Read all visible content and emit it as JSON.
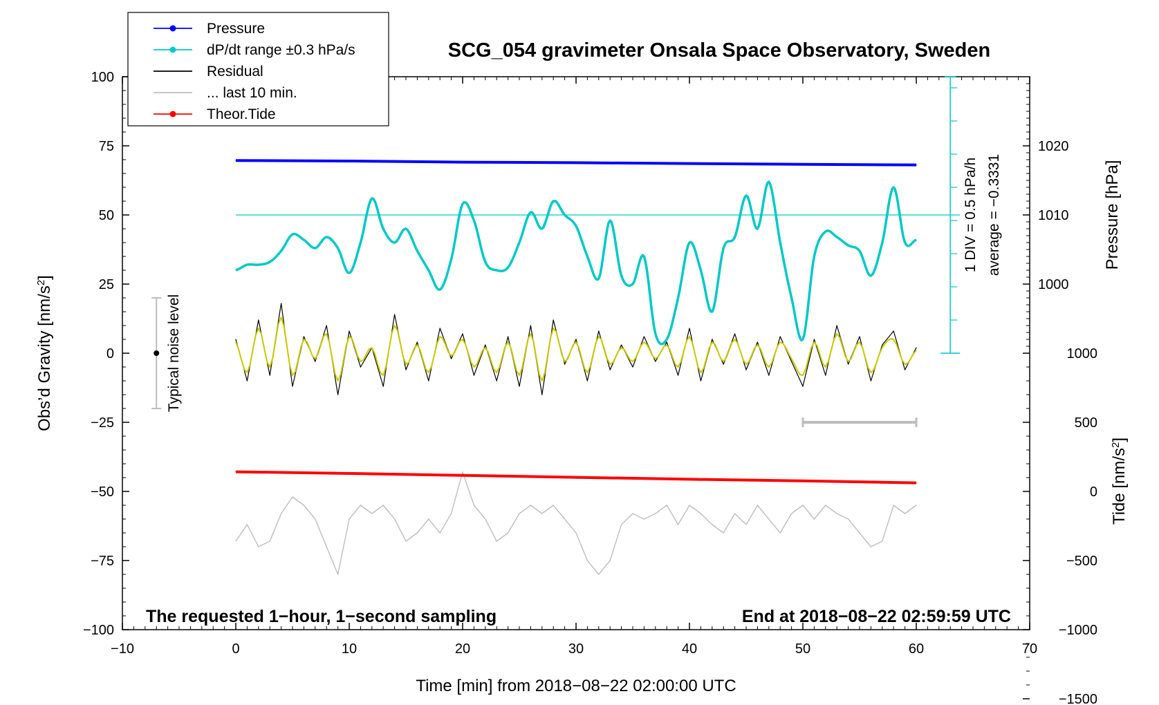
{
  "chart_data": {
    "type": "line",
    "title": "SCG_054 gravimeter Onsala Space Observatory, Sweden",
    "xlabel": "Time [min] from 2018−08−22 02:00:00 UTC",
    "ylabel": "Obs’d Gravity [nm/s²]",
    "ylabel_main": "Obs’d Gravity [nm/s",
    "ylabel_sup": "2",
    "ylabel_end": "]",
    "xlim": [
      -10,
      70
    ],
    "ylim": [
      -100,
      100
    ],
    "x_ticks": [
      -10,
      0,
      10,
      20,
      30,
      40,
      50,
      60,
      70
    ],
    "x_tick_labels": [
      "−10",
      "0",
      "10",
      "20",
      "30",
      "40",
      "50",
      "60",
      "70"
    ],
    "y_ticks": [
      -100,
      -75,
      -50,
      -25,
      0,
      25,
      50,
      75,
      100
    ],
    "y_tick_labels": [
      "−100",
      "−75",
      "−50",
      "−25",
      "0",
      "25",
      "50",
      "75",
      "100"
    ],
    "pressure_axis": {
      "label": "Pressure [hPa]",
      "ticks": [
        1000,
        1010,
        1020
      ],
      "tick_labels": [
        "1000",
        "1010",
        "1020"
      ],
      "gravity_at_1000": 25,
      "gravity_per_hpa": 2.5
    },
    "tide_axis": {
      "label_main": "Tide [nm/s",
      "label_sup": "2",
      "label_end": "]",
      "ticks": [
        -1500,
        -1000,
        -500,
        0,
        500,
        1000
      ],
      "tick_labels": [
        "−1500",
        "−1000",
        "−500",
        "0",
        "500",
        "1000"
      ],
      "gravity_at_0": -50,
      "gravity_per_unit": 0.05
    },
    "legend": [
      {
        "label": "Pressure",
        "color": "#0000ff",
        "marker": true
      },
      {
        "label": "dP/dt range ±0.3 hPa/s",
        "color": "#00c8c8",
        "marker": true
      },
      {
        "label": "Residual",
        "color": "#000000",
        "marker": false
      },
      {
        "label": "... last 10 min.",
        "color": "#bdbdbd",
        "marker": false
      },
      {
        "label": "Theor.Tide",
        "color": "#ff0000",
        "marker": true
      }
    ],
    "series": [
      {
        "name": "Pressure",
        "color": "#0000ff",
        "x": [
          0,
          10,
          20,
          30,
          40,
          50,
          60
        ],
        "y": [
          69.7,
          69.5,
          69.1,
          68.9,
          68.6,
          68.3,
          68.1
        ]
      },
      {
        "name": "dP/dt",
        "color": "#00c8c8",
        "x": [
          0,
          1,
          2,
          3,
          4,
          5,
          6,
          7,
          8,
          9,
          10,
          11,
          12,
          13,
          14,
          15,
          16,
          17,
          18,
          19,
          20,
          21,
          22,
          23,
          24,
          25,
          26,
          27,
          28,
          29,
          30,
          31,
          32,
          33,
          34,
          35,
          36,
          37,
          38,
          39,
          40,
          41,
          42,
          43,
          44,
          45,
          46,
          47,
          48,
          49,
          50,
          51,
          52,
          53,
          54,
          55,
          56,
          57,
          58,
          59,
          60
        ],
        "y": [
          30,
          32,
          32,
          33,
          37,
          43,
          41,
          38,
          42,
          38,
          29,
          40,
          56,
          45,
          40,
          45,
          37,
          30,
          23,
          34,
          54,
          48,
          33,
          30,
          31,
          40,
          51,
          45,
          55,
          50,
          46,
          35,
          27,
          48,
          28,
          25,
          35,
          7,
          5,
          20,
          40,
          30,
          15,
          38,
          42,
          57,
          45,
          62,
          40,
          20,
          5,
          35,
          44,
          42,
          39,
          37,
          28,
          40,
          60,
          40,
          41
        ]
      },
      {
        "name": "Residual",
        "color": "#000000",
        "x": [
          0,
          1,
          2,
          3,
          4,
          5,
          6,
          7,
          8,
          9,
          10,
          11,
          12,
          13,
          14,
          15,
          16,
          17,
          18,
          19,
          20,
          21,
          22,
          23,
          24,
          25,
          26,
          27,
          28,
          29,
          30,
          31,
          32,
          33,
          34,
          35,
          36,
          37,
          38,
          39,
          40,
          41,
          42,
          43,
          44,
          45,
          46,
          47,
          48,
          49,
          50,
          51,
          52,
          53,
          54,
          55,
          56,
          57,
          58,
          59,
          60
        ],
        "y": [
          5,
          -10,
          12,
          -8,
          18,
          -12,
          6,
          -3,
          10,
          -15,
          8,
          -5,
          2,
          -12,
          14,
          -6,
          4,
          -10,
          9,
          -2,
          7,
          -8,
          3,
          -10,
          6,
          -12,
          10,
          -15,
          12,
          -4,
          5,
          -10,
          8,
          -6,
          3,
          -5,
          6,
          -3,
          4,
          -8,
          9,
          -10,
          5,
          -4,
          7,
          -6,
          4,
          -8,
          6,
          -3,
          -12,
          5,
          -8,
          10,
          -4,
          6,
          -10,
          3,
          8,
          -6,
          2
        ]
      },
      {
        "name": "Residual filtered",
        "color": "#c8c800",
        "x": [
          0,
          1,
          2,
          3,
          4,
          5,
          6,
          7,
          8,
          9,
          10,
          11,
          12,
          13,
          14,
          15,
          16,
          17,
          18,
          19,
          20,
          21,
          22,
          23,
          24,
          25,
          26,
          27,
          28,
          29,
          30,
          31,
          32,
          33,
          34,
          35,
          36,
          37,
          38,
          39,
          40,
          41,
          42,
          43,
          44,
          45,
          46,
          47,
          48,
          49,
          50,
          51,
          52,
          53,
          54,
          55,
          56,
          57,
          58,
          59,
          60
        ],
        "y": [
          4,
          -7,
          9,
          -5,
          13,
          -8,
          5,
          -2,
          7,
          -10,
          6,
          -3,
          2,
          -8,
          10,
          -4,
          3,
          -7,
          6,
          -1,
          5,
          -5,
          2,
          -7,
          4,
          -8,
          7,
          -10,
          9,
          -3,
          4,
          -7,
          6,
          -4,
          2,
          -3,
          4,
          -2,
          3,
          -5,
          6,
          -7,
          4,
          -3,
          5,
          -4,
          3,
          -5,
          4,
          -2,
          -8,
          4,
          -5,
          7,
          -3,
          4,
          -7,
          2,
          5,
          -4,
          1
        ]
      },
      {
        "name": "... last 10 min.",
        "color": "#bdbdbd",
        "x": [
          0,
          1,
          2,
          3,
          4,
          5,
          6,
          7,
          8,
          9,
          10,
          11,
          12,
          13,
          14,
          15,
          16,
          17,
          18,
          19,
          20,
          21,
          22,
          23,
          24,
          25,
          26,
          27,
          28,
          29,
          30,
          31,
          32,
          33,
          34,
          35,
          36,
          37,
          38,
          39,
          40,
          41,
          42,
          43,
          44,
          45,
          46,
          47,
          48,
          49,
          50,
          51,
          52,
          53,
          54,
          55,
          56,
          57,
          58,
          59,
          60
        ],
        "y": [
          -68,
          -62,
          -70,
          -68,
          -58,
          -52,
          -55,
          -60,
          -70,
          -80,
          -60,
          -55,
          -58,
          -55,
          -60,
          -68,
          -65,
          -60,
          -65,
          -58,
          -43,
          -55,
          -60,
          -68,
          -65,
          -58,
          -55,
          -58,
          -55,
          -60,
          -65,
          -75,
          -80,
          -75,
          -62,
          -58,
          -60,
          -58,
          -55,
          -62,
          -55,
          -58,
          -62,
          -65,
          -58,
          -62,
          -55,
          -60,
          -65,
          -58,
          -55,
          -60,
          -55,
          -58,
          -60,
          -65,
          -70,
          -68,
          -55,
          -58,
          -55
        ]
      },
      {
        "name": "Theor.Tide",
        "color": "#ff0000",
        "x": [
          0,
          10,
          20,
          30,
          40,
          50,
          60
        ],
        "y": [
          -42.9,
          -43.5,
          -44.2,
          -44.9,
          -45.6,
          -46.2,
          -46.9
        ]
      }
    ],
    "annotations": {
      "noise_label": "Typical noise level",
      "noise_range": [
        -20,
        20
      ],
      "noise_x": -7,
      "scale_line1": "1 DIV = 0.5 hPa/h",
      "scale_line2": "average = −0.3331",
      "scale_ref_y": 50,
      "scale_bar_x": 63,
      "scale_bar_range": [
        0,
        100
      ],
      "last10_bar": [
        50,
        60
      ],
      "last10_bar_y": -25,
      "bottom_left": "The requested 1−hour, 1−second sampling",
      "bottom_right": "End at 2018−08−22 02:59:59 UTC"
    }
  }
}
